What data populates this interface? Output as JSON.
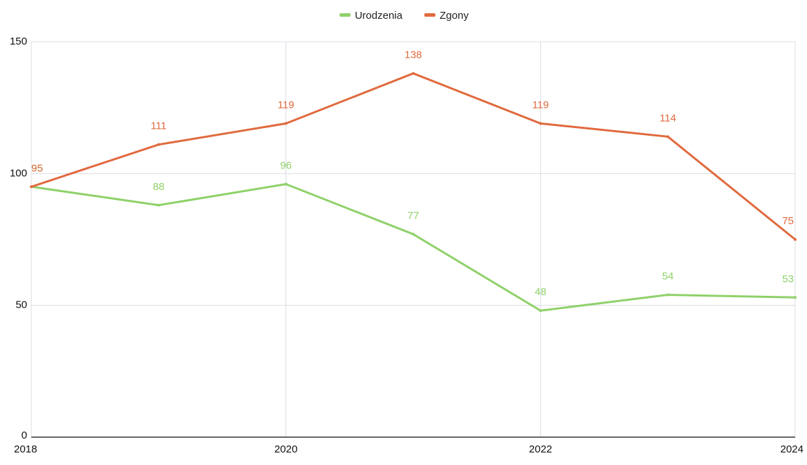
{
  "chart_data": {
    "type": "line",
    "title": "",
    "xlabel": "",
    "ylabel": "",
    "x": [
      2018,
      2019,
      2020,
      2021,
      2022,
      2023,
      2024
    ],
    "x_ticks": [
      "2018",
      "2020",
      "2022",
      "2024"
    ],
    "y_ticks": [
      "0",
      "50",
      "100",
      "150"
    ],
    "xlim": [
      2018,
      2024
    ],
    "ylim": [
      0,
      150
    ],
    "grid": true,
    "legend_position": "top-center",
    "series": [
      {
        "name": "Urodzenia",
        "color": "#8fd16a",
        "values": [
          95,
          88,
          96,
          77,
          48,
          54,
          53
        ]
      },
      {
        "name": "Zgony",
        "color": "#e06a3e",
        "values": [
          95,
          111,
          119,
          138,
          119,
          114,
          75
        ]
      }
    ]
  }
}
